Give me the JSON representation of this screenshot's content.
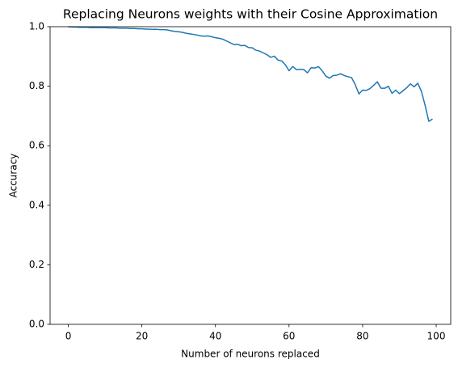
{
  "chart_data": {
    "type": "line",
    "title": "Replacing Neurons weights with their Cosine Approximation",
    "xlabel": "Number of neurons replaced",
    "ylabel": "Accuracy",
    "color": "#1f77b4",
    "x": [
      0,
      1,
      2,
      3,
      4,
      5,
      6,
      7,
      8,
      9,
      10,
      11,
      12,
      13,
      14,
      15,
      16,
      17,
      18,
      19,
      20,
      21,
      22,
      23,
      24,
      25,
      26,
      27,
      28,
      29,
      30,
      31,
      32,
      33,
      34,
      35,
      36,
      37,
      38,
      39,
      40,
      41,
      42,
      43,
      44,
      45,
      46,
      47,
      48,
      49,
      50,
      51,
      52,
      53,
      54,
      55,
      56,
      57,
      58,
      59,
      60,
      61,
      62,
      63,
      64,
      65,
      66,
      67,
      68,
      69,
      70,
      71,
      72,
      73,
      74,
      75,
      76,
      77,
      78,
      79,
      80,
      81,
      82,
      83,
      84,
      85,
      86,
      87,
      88,
      89,
      90,
      91,
      92,
      93,
      94,
      95,
      96,
      97,
      98,
      99
    ],
    "values": [
      1.0,
      0.999,
      0.999,
      0.998,
      0.998,
      0.998,
      0.997,
      0.997,
      0.997,
      0.997,
      0.997,
      0.996,
      0.996,
      0.996,
      0.995,
      0.995,
      0.995,
      0.994,
      0.994,
      0.993,
      0.993,
      0.992,
      0.992,
      0.991,
      0.991,
      0.99,
      0.99,
      0.989,
      0.986,
      0.984,
      0.983,
      0.981,
      0.978,
      0.976,
      0.974,
      0.972,
      0.969,
      0.968,
      0.969,
      0.966,
      0.963,
      0.961,
      0.958,
      0.952,
      0.946,
      0.94,
      0.941,
      0.936,
      0.937,
      0.93,
      0.929,
      0.921,
      0.918,
      0.912,
      0.906,
      0.897,
      0.901,
      0.888,
      0.885,
      0.872,
      0.852,
      0.866,
      0.856,
      0.857,
      0.856,
      0.845,
      0.862,
      0.861,
      0.866,
      0.852,
      0.834,
      0.827,
      0.836,
      0.837,
      0.842,
      0.836,
      0.832,
      0.829,
      0.805,
      0.774,
      0.787,
      0.786,
      0.792,
      0.803,
      0.815,
      0.793,
      0.793,
      0.8,
      0.776,
      0.787,
      0.775,
      0.785,
      0.795,
      0.808,
      0.798,
      0.81,
      0.782,
      0.735,
      0.682,
      0.69
    ],
    "xlim": [
      -4.95,
      103.95
    ],
    "xticks": [
      0,
      20,
      40,
      60,
      80,
      100
    ],
    "ylim": [
      0,
      1
    ],
    "yticks": [
      {
        "value": 0,
        "label": "0.0"
      },
      0.2,
      0.4,
      0.6,
      0.8,
      {
        "value": 1,
        "label": "1.0"
      }
    ]
  }
}
